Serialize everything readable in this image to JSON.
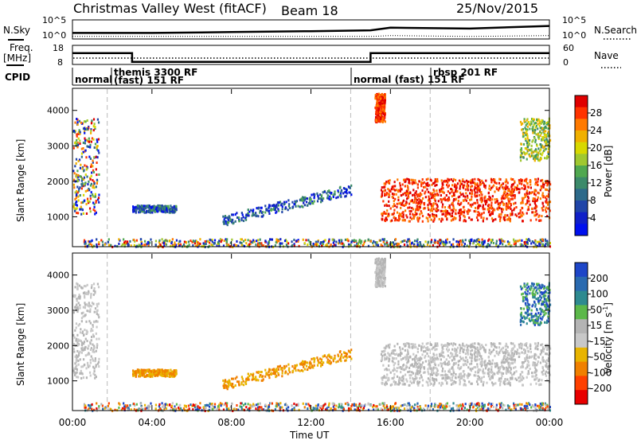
{
  "header": {
    "station": "Christmas Valley West (fitACF)",
    "beam": "Beam 18",
    "date": "25/Nov/2015"
  },
  "noise_panel": {
    "left_label": "N.Sky",
    "right_label": "N.Search",
    "left_ticks": [
      "10^5",
      "10^0"
    ],
    "right_ticks": [
      "10^5",
      "10^0"
    ]
  },
  "freq_panel": {
    "left_label_1": "Freq.",
    "left_label_2": "[MHz]",
    "right_label": "Nave",
    "left_ticks": [
      "18",
      "8"
    ],
    "right_ticks": [
      "60",
      "0"
    ]
  },
  "cpid": {
    "label": "CPID",
    "segments": [
      {
        "line1": "normal",
        "line2": ""
      },
      {
        "line1": "themis 3300 RF",
        "line2": "(fast) 151 RF"
      },
      {
        "line1": "normal (fast)  151 RF",
        "line2": ""
      },
      {
        "line1": "rbsp 201 RF",
        "line2": ""
      }
    ]
  },
  "power_colorbar": {
    "label": "Power [dB]",
    "ticks": [
      "28",
      "24",
      "20",
      "16",
      "12",
      "8",
      "4"
    ],
    "colors": [
      "#e00000",
      "#ff3300",
      "#ff7a00",
      "#f0b000",
      "#d8d800",
      "#a0c830",
      "#50a850",
      "#3c8a6a",
      "#2d6a8a",
      "#2045a8",
      "#1020c8",
      "#0010ee"
    ]
  },
  "velocity_colorbar": {
    "label_1": "Velocity [m s",
    "label_sup": "-1",
    "label_2": "]",
    "ticks": [
      "200",
      "100",
      "50",
      "15",
      "-15",
      "-50",
      "-100",
      "-200"
    ],
    "colors": [
      "#1e46c8",
      "#2a6ab0",
      "#2e8a90",
      "#5cb84a",
      "#b4b4b4",
      "#c8c8c8",
      "#e8b400",
      "#f08000",
      "#ff4000",
      "#e80000"
    ]
  },
  "range_axis": {
    "label": "Slant Range [km]",
    "ticks": [
      "4000",
      "3000",
      "2000",
      "1000"
    ]
  },
  "time_axis": {
    "label": "Time UT",
    "ticks": [
      "00:00",
      "04:00",
      "08:00",
      "12:00",
      "16:00",
      "20:00",
      "00:00"
    ]
  },
  "chart_data": [
    {
      "type": "line",
      "name": "noise",
      "x_hours": [
        0,
        4,
        8,
        12,
        15,
        16,
        20,
        24
      ],
      "n_sky_level": [
        0.3,
        0.3,
        0.35,
        0.4,
        0.45,
        0.6,
        0.55,
        0.7
      ],
      "n_search_level": [
        0.1,
        0.1,
        0.1,
        0.1,
        0.1,
        0.15,
        0.1,
        0.15
      ]
    },
    {
      "type": "line",
      "name": "frequency",
      "segments": [
        {
          "start_h": 0,
          "end_h": 3.0,
          "freq_mhz": 14.0
        },
        {
          "start_h": 3.0,
          "end_h": 15.0,
          "freq_mhz": 9.0
        },
        {
          "start_h": 15.0,
          "end_h": 24,
          "freq_mhz": 14.0
        }
      ],
      "ylim": [
        8,
        18
      ]
    },
    {
      "type": "heatmap",
      "name": "power",
      "xlim_h": [
        0,
        24
      ],
      "ylim_km": [
        180,
        4600
      ],
      "cpid_boundaries_h": [
        1.75,
        14.0,
        18.0
      ],
      "regions": [
        {
          "h0": 0.0,
          "h1": 1.3,
          "km0": 1100,
          "km1": 3800,
          "level": "mixed"
        },
        {
          "h0": 3.0,
          "h1": 5.2,
          "km0": 1150,
          "km1": 1350,
          "level": "low"
        },
        {
          "h0": 7.5,
          "h1": 14.0,
          "km0": 900,
          "km1": 1900,
          "level": "low"
        },
        {
          "h0": 15.2,
          "h1": 15.7,
          "km0": 3700,
          "km1": 4500,
          "level": "high"
        },
        {
          "h0": 15.5,
          "h1": 24.0,
          "km0": 900,
          "km1": 2100,
          "level": "high"
        },
        {
          "h0": 22.5,
          "h1": 24.0,
          "km0": 2600,
          "km1": 3800,
          "level": "mid"
        },
        {
          "h0": 0.5,
          "h1": 24.0,
          "km0": 180,
          "km1": 400,
          "level": "ground"
        }
      ]
    },
    {
      "type": "heatmap",
      "name": "velocity",
      "xlim_h": [
        0,
        24
      ],
      "ylim_km": [
        180,
        4600
      ]
    }
  ]
}
